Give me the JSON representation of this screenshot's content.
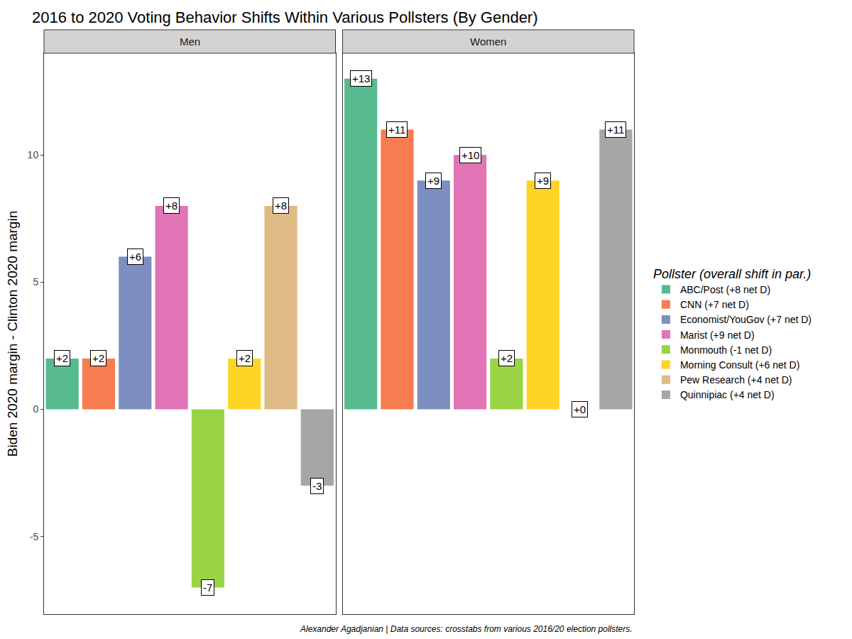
{
  "chart_data": {
    "type": "bar",
    "title": "2016 to 2020 Voting Behavior Shifts Within Various Pollsters (By Gender)",
    "y_label": "Biden 2020 margin - Clinton 2020 margin",
    "legend_title": "Pollster (overall shift in par.)",
    "source": "Alexander Agadjanian | Data sources: crosstabs from various 2016/20 election pollsters.",
    "categories": [
      "Men",
      "Women"
    ],
    "series": [
      {
        "name": "ABC/Post (+8 net D)",
        "color": "#57BB8F",
        "values": [
          2,
          13
        ],
        "value_labels": [
          "+2",
          "+13"
        ]
      },
      {
        "name": "CNN (+7 net D)",
        "color": "#F77C50",
        "values": [
          2,
          11
        ],
        "value_labels": [
          "+2",
          "+11"
        ]
      },
      {
        "name": "Economist/YouGov (+7 net D)",
        "color": "#7C8FC0",
        "values": [
          6,
          9
        ],
        "value_labels": [
          "+6",
          "+9"
        ]
      },
      {
        "name": "Marist (+9 net D)",
        "color": "#E074B5",
        "values": [
          8,
          10
        ],
        "value_labels": [
          "+8",
          "+10"
        ]
      },
      {
        "name": "Monmouth (-1 net D)",
        "color": "#9AD444",
        "values": [
          -7,
          2
        ],
        "value_labels": [
          "-7",
          "+2"
        ]
      },
      {
        "name": "Morning Consult (+6 net D)",
        "color": "#FDD426",
        "values": [
          2,
          9
        ],
        "value_labels": [
          "+2",
          "+9"
        ]
      },
      {
        "name": "Pew Research (+4 net D)",
        "color": "#DEBA85",
        "values": [
          8,
          0
        ],
        "value_labels": [
          "+8",
          "+0"
        ]
      },
      {
        "name": "Quinnipiac (+4 net D)",
        "color": "#A6A6A6",
        "values": [
          -3,
          11
        ],
        "value_labels": [
          "-3",
          "+11"
        ]
      }
    ],
    "ylim": [
      -8.05,
      14.0
    ],
    "yticks": [
      -5,
      0,
      5,
      10
    ],
    "grid": false,
    "data_labels": true,
    "tick_labels": "y",
    "legend": "right"
  }
}
